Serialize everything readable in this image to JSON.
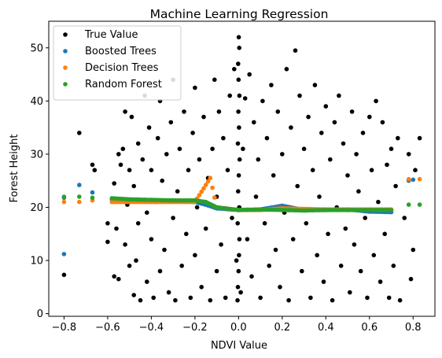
{
  "chart_data": {
    "type": "scatter",
    "title": "Machine Learning Regression",
    "xlabel": "NDVI Value",
    "ylabel": "Forest Height",
    "xlim": [
      -0.87,
      0.9
    ],
    "ylim": [
      -0.5,
      55
    ],
    "xticks": [
      -0.8,
      -0.6,
      -0.4,
      -0.2,
      0.0,
      0.2,
      0.4,
      0.6,
      0.8
    ],
    "xtick_labels": [
      "−0.8",
      "−0.6",
      "−0.4",
      "−0.2",
      "0.0",
      "0.2",
      "0.4",
      "0.6",
      "0.8"
    ],
    "yticks": [
      0,
      10,
      20,
      30,
      40,
      50
    ],
    "ytick_labels": [
      "0",
      "10",
      "20",
      "30",
      "40",
      "50"
    ],
    "grid": false,
    "legend_position": "top-left",
    "series": [
      {
        "name": "True Value",
        "color": "#000000",
        "points": [
          [
            -0.8,
            7.3
          ],
          [
            -0.73,
            34
          ],
          [
            -0.67,
            28
          ],
          [
            -0.66,
            27
          ],
          [
            -0.6,
            17
          ],
          [
            -0.6,
            13.5
          ],
          [
            -0.57,
            7
          ],
          [
            -0.57,
            24.5
          ],
          [
            -0.56,
            16
          ],
          [
            -0.55,
            6.5
          ],
          [
            -0.55,
            30
          ],
          [
            -0.54,
            28
          ],
          [
            -0.53,
            31
          ],
          [
            -0.52,
            38
          ],
          [
            -0.52,
            13
          ],
          [
            -0.51,
            20.5
          ],
          [
            -0.5,
            9
          ],
          [
            -0.5,
            27
          ],
          [
            -0.49,
            37
          ],
          [
            -0.48,
            3.5
          ],
          [
            -0.48,
            24
          ],
          [
            -0.47,
            10
          ],
          [
            -0.46,
            32
          ],
          [
            -0.46,
            17
          ],
          [
            -0.45,
            2.5
          ],
          [
            -0.44,
            29
          ],
          [
            -0.43,
            41
          ],
          [
            -0.42,
            6
          ],
          [
            -0.42,
            19
          ],
          [
            -0.41,
            35
          ],
          [
            -0.4,
            14
          ],
          [
            -0.4,
            27
          ],
          [
            -0.39,
            3
          ],
          [
            -0.38,
            21
          ],
          [
            -0.37,
            33
          ],
          [
            -0.36,
            8
          ],
          [
            -0.36,
            40
          ],
          [
            -0.35,
            25
          ],
          [
            -0.34,
            12
          ],
          [
            -0.33,
            30
          ],
          [
            -0.32,
            4
          ],
          [
            -0.31,
            36
          ],
          [
            -0.3,
            18
          ],
          [
            -0.3,
            44
          ],
          [
            -0.29,
            2.5
          ],
          [
            -0.28,
            23
          ],
          [
            -0.27,
            31
          ],
          [
            -0.26,
            9
          ],
          [
            -0.25,
            38
          ],
          [
            -0.24,
            15
          ],
          [
            -0.23,
            27
          ],
          [
            -0.22,
            3
          ],
          [
            -0.21,
            34
          ],
          [
            -0.2,
            11
          ],
          [
            -0.2,
            42.5
          ],
          [
            -0.19,
            20
          ],
          [
            -0.18,
            29
          ],
          [
            -0.17,
            5
          ],
          [
            -0.16,
            37
          ],
          [
            -0.15,
            16
          ],
          [
            -0.14,
            25.5
          ],
          [
            -0.13,
            2.5
          ],
          [
            -0.12,
            31
          ],
          [
            -0.11,
            44
          ],
          [
            -0.1,
            8
          ],
          [
            -0.1,
            22
          ],
          [
            -0.09,
            38
          ],
          [
            -0.08,
            13
          ],
          [
            -0.07,
            33
          ],
          [
            -0.06,
            3
          ],
          [
            -0.05,
            27
          ],
          [
            -0.04,
            41
          ],
          [
            -0.03,
            18
          ],
          [
            -0.02,
            46
          ],
          [
            -0.01,
            10
          ],
          [
            -0.005,
            2.5
          ],
          [
            -0.003,
            5
          ],
          [
            0.0,
            8
          ],
          [
            0.002,
            11
          ],
          [
            0.004,
            14
          ],
          [
            -0.004,
            17
          ],
          [
            0.003,
            20
          ],
          [
            -0.002,
            23
          ],
          [
            0.001,
            26
          ],
          [
            0.005,
            29
          ],
          [
            -0.003,
            32
          ],
          [
            0.002,
            35
          ],
          [
            -0.001,
            38
          ],
          [
            0.004,
            41
          ],
          [
            0.0,
            44
          ],
          [
            -0.002,
            47
          ],
          [
            0.003,
            50
          ],
          [
            0.001,
            52
          ],
          [
            0.01,
            4
          ],
          [
            0.02,
            31
          ],
          [
            0.03,
            40.5
          ],
          [
            0.04,
            14
          ],
          [
            0.05,
            45
          ],
          [
            0.06,
            7
          ],
          [
            0.07,
            36
          ],
          [
            0.08,
            22
          ],
          [
            0.09,
            29
          ],
          [
            0.1,
            3
          ],
          [
            0.11,
            40
          ],
          [
            0.12,
            17
          ],
          [
            0.13,
            33
          ],
          [
            0.14,
            9
          ],
          [
            0.15,
            43
          ],
          [
            0.16,
            26
          ],
          [
            0.17,
            12
          ],
          [
            0.18,
            38
          ],
          [
            0.19,
            5
          ],
          [
            0.2,
            30
          ],
          [
            0.21,
            19
          ],
          [
            0.22,
            46
          ],
          [
            0.23,
            2.5
          ],
          [
            0.24,
            35
          ],
          [
            0.25,
            14
          ],
          [
            0.26,
            49.5
          ],
          [
            0.27,
            24
          ],
          [
            0.28,
            41
          ],
          [
            0.29,
            8
          ],
          [
            0.3,
            31
          ],
          [
            0.31,
            17
          ],
          [
            0.32,
            37
          ],
          [
            0.33,
            3
          ],
          [
            0.34,
            27
          ],
          [
            0.35,
            43
          ],
          [
            0.36,
            11
          ],
          [
            0.37,
            22
          ],
          [
            0.38,
            34
          ],
          [
            0.39,
            6
          ],
          [
            0.4,
            39
          ],
          [
            0.41,
            15
          ],
          [
            0.42,
            29
          ],
          [
            0.43,
            2.5
          ],
          [
            0.44,
            36
          ],
          [
            0.45,
            20
          ],
          [
            0.46,
            41
          ],
          [
            0.47,
            9
          ],
          [
            0.48,
            32
          ],
          [
            0.49,
            16
          ],
          [
            0.5,
            26
          ],
          [
            0.51,
            4
          ],
          [
            0.52,
            38
          ],
          [
            0.53,
            13
          ],
          [
            0.54,
            30
          ],
          [
            0.55,
            23
          ],
          [
            0.56,
            8
          ],
          [
            0.57,
            34
          ],
          [
            0.58,
            18
          ],
          [
            0.59,
            3
          ],
          [
            0.6,
            37
          ],
          [
            0.61,
            27
          ],
          [
            0.62,
            11
          ],
          [
            0.63,
            40
          ],
          [
            0.64,
            21
          ],
          [
            0.65,
            6
          ],
          [
            0.66,
            36
          ],
          [
            0.67,
            15
          ],
          [
            0.68,
            28
          ],
          [
            0.69,
            3
          ],
          [
            0.7,
            31
          ],
          [
            0.71,
            9
          ],
          [
            0.72,
            24
          ],
          [
            0.73,
            33
          ],
          [
            0.74,
            2.5
          ],
          [
            0.76,
            18
          ],
          [
            0.78,
            30
          ],
          [
            0.79,
            6.5
          ],
          [
            0.8,
            12
          ],
          [
            0.81,
            27
          ],
          [
            0.83,
            33
          ]
        ]
      },
      {
        "name": "Boosted Trees",
        "color": "#1f77b4",
        "points": [
          [
            -0.8,
            11.2
          ],
          [
            -0.8,
            21.8
          ],
          [
            -0.73,
            24.2
          ],
          [
            -0.67,
            22.8
          ],
          [
            -0.58,
            21.5
          ],
          [
            -0.5,
            21.3
          ],
          [
            -0.4,
            21.2
          ],
          [
            -0.3,
            21.1
          ],
          [
            -0.2,
            21.0
          ],
          [
            -0.15,
            20.5
          ],
          [
            -0.1,
            19.8
          ],
          [
            0.0,
            19.5
          ],
          [
            0.1,
            19.6
          ],
          [
            0.2,
            20.3
          ],
          [
            0.3,
            19.5
          ],
          [
            0.4,
            19.5
          ],
          [
            0.5,
            19.6
          ],
          [
            0.6,
            19.2
          ],
          [
            0.7,
            19.1
          ],
          [
            0.78,
            25.0
          ],
          [
            0.8,
            25.2
          ]
        ]
      },
      {
        "name": "Decision Trees",
        "color": "#ff7f0e",
        "points": [
          [
            -0.8,
            21.0
          ],
          [
            -0.73,
            21.0
          ],
          [
            -0.67,
            21.3
          ],
          [
            -0.58,
            21.0
          ],
          [
            -0.5,
            21.0
          ],
          [
            -0.4,
            21.0
          ],
          [
            -0.3,
            21.0
          ],
          [
            -0.2,
            21.0
          ],
          [
            -0.13,
            25.5
          ],
          [
            -0.1,
            20.0
          ],
          [
            0.0,
            19.5
          ],
          [
            0.1,
            19.5
          ],
          [
            0.2,
            19.8
          ],
          [
            0.3,
            19.7
          ],
          [
            0.4,
            19.6
          ],
          [
            0.5,
            19.6
          ],
          [
            0.6,
            19.6
          ],
          [
            0.7,
            19.6
          ],
          [
            0.78,
            25.3
          ],
          [
            0.83,
            25.3
          ]
        ]
      },
      {
        "name": "Random Forest",
        "color": "#2ca02c",
        "points": [
          [
            -0.8,
            22.0
          ],
          [
            -0.73,
            22.0
          ],
          [
            -0.67,
            21.8
          ],
          [
            -0.58,
            21.7
          ],
          [
            -0.5,
            21.5
          ],
          [
            -0.4,
            21.4
          ],
          [
            -0.3,
            21.3
          ],
          [
            -0.2,
            21.3
          ],
          [
            -0.15,
            21.0
          ],
          [
            -0.1,
            20.0
          ],
          [
            0.0,
            19.5
          ],
          [
            0.1,
            19.6
          ],
          [
            0.2,
            19.5
          ],
          [
            0.3,
            19.4
          ],
          [
            0.4,
            19.5
          ],
          [
            0.5,
            19.5
          ],
          [
            0.6,
            19.5
          ],
          [
            0.7,
            19.5
          ],
          [
            0.78,
            20.5
          ],
          [
            0.83,
            20.5
          ]
        ]
      }
    ]
  }
}
